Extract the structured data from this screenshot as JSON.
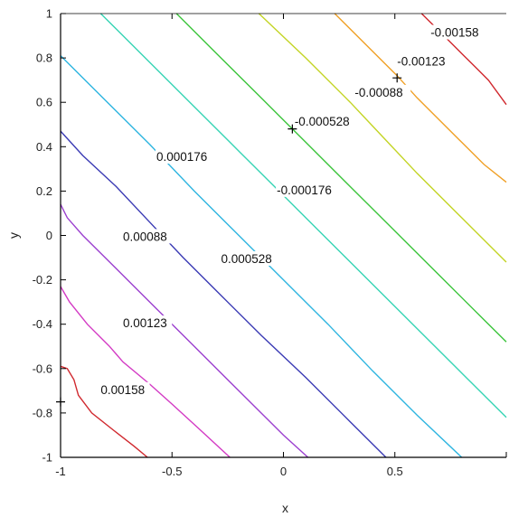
{
  "chart_data": {
    "type": "contour",
    "title": "",
    "xlabel": "x",
    "ylabel": "y",
    "xlim": [
      -1,
      1
    ],
    "ylim": [
      -1,
      1
    ],
    "x_ticks": [
      -1,
      -0.5,
      0,
      0.5
    ],
    "x_tick_labels": [
      "-1",
      "-0.5",
      "0",
      "0.5"
    ],
    "y_ticks": [
      -1,
      -0.8,
      -0.6,
      -0.4,
      -0.2,
      0,
      0.2,
      0.4,
      0.6,
      0.8,
      1
    ],
    "y_tick_labels": [
      "-1",
      "-0.8",
      "-0.6",
      "-0.4",
      "-0.2",
      "0",
      "0.2",
      "0.4",
      "0.6",
      "0.8",
      "1"
    ],
    "grid": false,
    "contours": [
      {
        "level": 0.00158,
        "label": "0.00158",
        "color": "#d0282e",
        "points": [
          [
            -1,
            -0.59
          ],
          [
            -0.97,
            -0.6
          ],
          [
            -0.94,
            -0.65
          ],
          [
            -0.92,
            -0.72
          ],
          [
            -0.86,
            -0.8
          ],
          [
            -0.76,
            -0.88
          ],
          [
            -0.67,
            -0.95
          ],
          [
            -0.61,
            -1
          ]
        ],
        "label_at": [
          -0.82,
          -0.71
        ]
      },
      {
        "level": 0.00123,
        "label": "0.00123",
        "color": "#d33ac4",
        "points": [
          [
            -1,
            -0.23
          ],
          [
            -0.96,
            -0.3
          ],
          [
            -0.88,
            -0.4
          ],
          [
            -0.78,
            -0.5
          ],
          [
            -0.72,
            -0.57
          ],
          [
            -0.6,
            -0.67
          ],
          [
            -0.5,
            -0.76
          ],
          [
            -0.38,
            -0.87
          ],
          [
            -0.24,
            -1
          ]
        ],
        "label_at": [
          -0.72,
          -0.41
        ]
      },
      {
        "level": 0.00088,
        "label": "0.00088",
        "color": "#9b3fcf",
        "points": [
          [
            -1,
            0.14
          ],
          [
            -0.97,
            0.08
          ],
          [
            -0.9,
            0
          ],
          [
            -0.8,
            -0.1
          ],
          [
            -0.65,
            -0.25
          ],
          [
            -0.5,
            -0.4
          ],
          [
            -0.35,
            -0.55
          ],
          [
            -0.2,
            -0.7
          ],
          [
            0,
            -0.9
          ],
          [
            0.11,
            -1
          ]
        ],
        "label_at": [
          -0.72,
          -0.02
        ]
      },
      {
        "level": 0.000528,
        "label": "0.000528",
        "color": "#3a3ab4",
        "points": [
          [
            -1,
            0.47
          ],
          [
            -0.9,
            0.36
          ],
          [
            -0.75,
            0.22
          ],
          [
            -0.6,
            0.06
          ],
          [
            -0.45,
            -0.1
          ],
          [
            -0.3,
            -0.25
          ],
          [
            -0.1,
            -0.45
          ],
          [
            0.1,
            -0.64
          ],
          [
            0.3,
            -0.84
          ],
          [
            0.46,
            -1
          ]
        ],
        "label_at": [
          -0.28,
          -0.12
        ]
      },
      {
        "level": 0.000176,
        "label": "0.000176",
        "color": "#2eb5e0",
        "points": [
          [
            -1,
            0.81
          ],
          [
            -0.8,
            0.61
          ],
          [
            -0.6,
            0.41
          ],
          [
            -0.4,
            0.2
          ],
          [
            -0.2,
            0
          ],
          [
            0,
            -0.2
          ],
          [
            0.2,
            -0.4
          ],
          [
            0.4,
            -0.61
          ],
          [
            0.6,
            -0.81
          ],
          [
            0.8,
            -1
          ]
        ],
        "label_at": [
          -0.57,
          0.34
        ]
      },
      {
        "level": -0.000176,
        "label": "-0.000176",
        "color": "#36d4b4",
        "points": [
          [
            -0.82,
            1
          ],
          [
            -0.6,
            0.78
          ],
          [
            -0.4,
            0.58
          ],
          [
            -0.2,
            0.38
          ],
          [
            0,
            0.18
          ],
          [
            0.2,
            -0.02
          ],
          [
            0.4,
            -0.22
          ],
          [
            0.6,
            -0.42
          ],
          [
            0.8,
            -0.62
          ],
          [
            1,
            -0.82
          ]
        ],
        "label_at": [
          -0.03,
          0.19
        ]
      },
      {
        "level": -0.000528,
        "label": "-0.000528",
        "color": "#3bc43b",
        "points": [
          [
            -0.48,
            1
          ],
          [
            -0.3,
            0.82
          ],
          [
            -0.1,
            0.62
          ],
          [
            0.1,
            0.42
          ],
          [
            0.3,
            0.22
          ],
          [
            0.5,
            0.02
          ],
          [
            0.7,
            -0.18
          ],
          [
            0.9,
            -0.38
          ],
          [
            1,
            -0.48
          ]
        ],
        "label_at": [
          0.05,
          0.5
        ]
      },
      {
        "level": -0.00088,
        "label": "-0.00088",
        "color": "#c3d424",
        "points": [
          [
            -0.11,
            1
          ],
          [
            0.1,
            0.8
          ],
          [
            0.3,
            0.6
          ],
          [
            0.45,
            0.44
          ],
          [
            0.6,
            0.28
          ],
          [
            0.8,
            0.08
          ],
          [
            1,
            -0.12
          ]
        ],
        "label_at": [
          0.32,
          0.63
        ]
      },
      {
        "level": -0.00123,
        "label": "-0.00123",
        "color": "#f0a026",
        "points": [
          [
            0.23,
            1
          ],
          [
            0.4,
            0.83
          ],
          [
            0.51,
            0.72
          ],
          [
            0.6,
            0.62
          ],
          [
            0.8,
            0.42
          ],
          [
            0.9,
            0.32
          ],
          [
            1,
            0.24
          ]
        ],
        "label_at": [
          0.51,
          0.77
        ]
      },
      {
        "level": -0.00158,
        "label": "-0.00158",
        "color": "#d0282e",
        "points": [
          [
            0.62,
            1
          ],
          [
            0.7,
            0.92
          ],
          [
            0.8,
            0.82
          ],
          [
            0.87,
            0.75
          ],
          [
            0.92,
            0.7
          ],
          [
            1,
            0.59
          ]
        ],
        "label_at": [
          0.66,
          0.9
        ]
      }
    ],
    "markers": [
      {
        "x": 0.04,
        "y": 0.48
      },
      {
        "x": 0.51,
        "y": 0.71
      },
      {
        "x": -1,
        "y": -0.75
      }
    ]
  }
}
